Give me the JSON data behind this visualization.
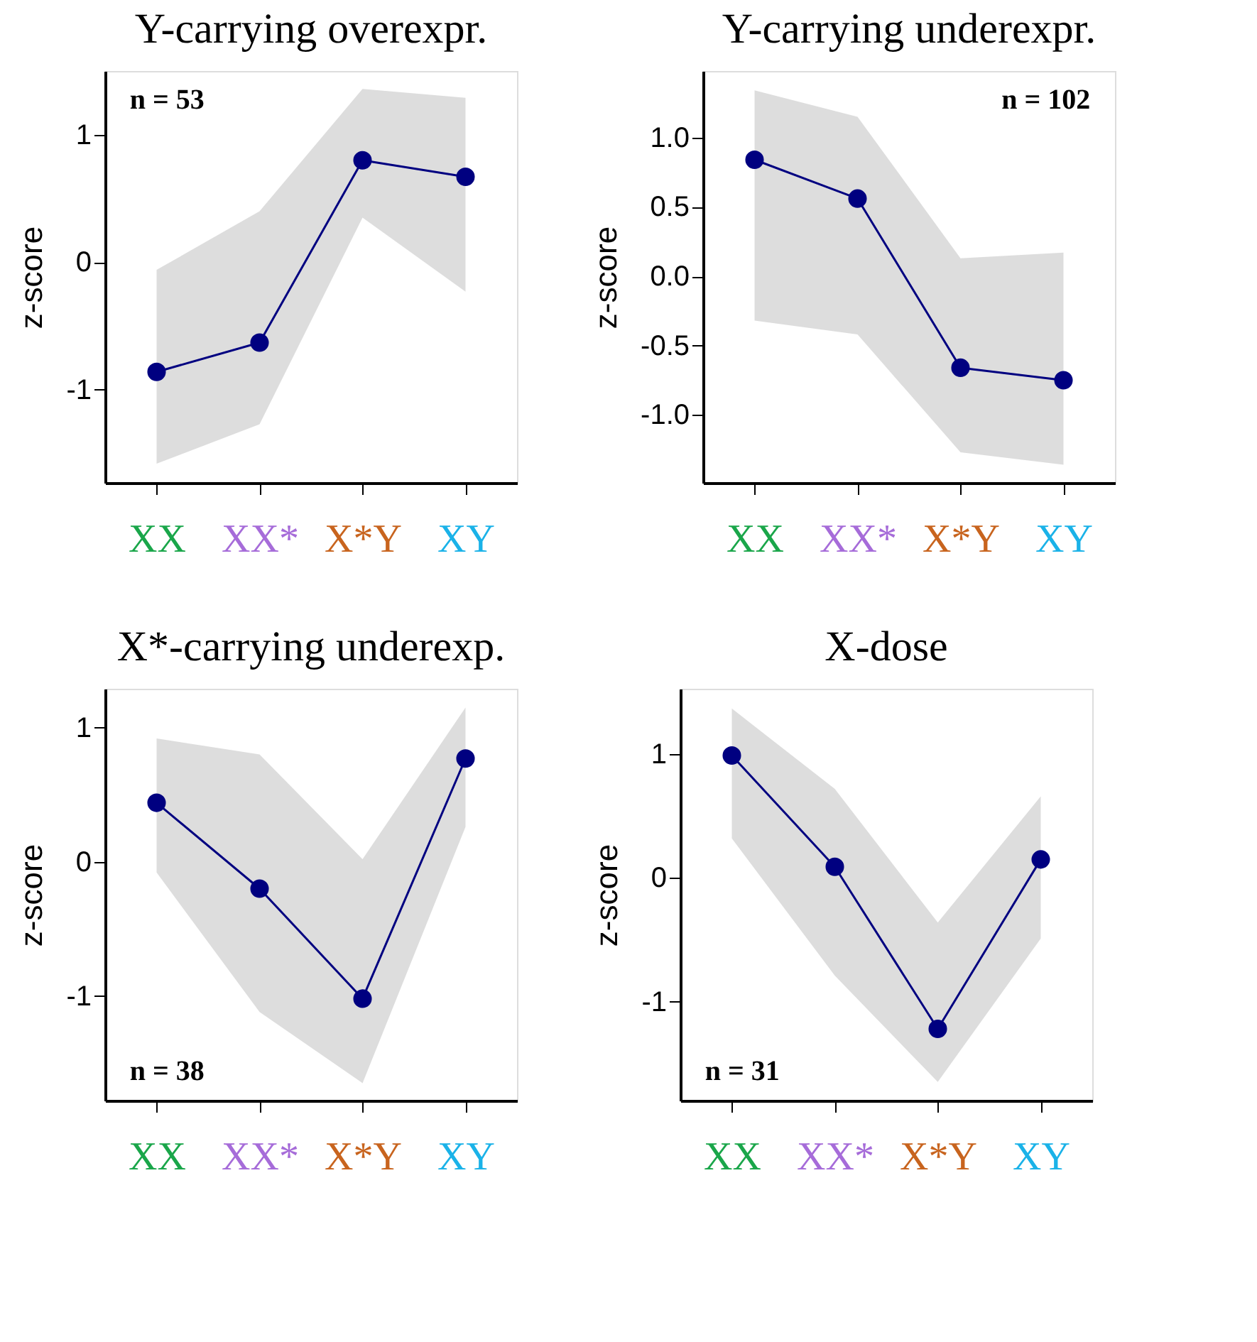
{
  "chart_data": [
    {
      "type": "line",
      "title": "Y-carrying overexpr.",
      "ylabel": "z-score",
      "categories": [
        "XX",
        "XX*",
        "X*Y",
        "XY"
      ],
      "ylim": [
        -1.73,
        1.5
      ],
      "yticks": [
        -1,
        0,
        1
      ],
      "grid": false,
      "marker": "circle",
      "line_style": "solid",
      "annotations": [
        "n = 53"
      ],
      "series": [
        {
          "color": "#000080",
          "values": [
            -0.86,
            -0.63,
            0.8,
            0.67
          ],
          "lower": [
            -1.58,
            -1.27,
            0.35,
            -0.23
          ],
          "upper": [
            -0.06,
            0.4,
            1.36,
            1.29
          ]
        }
      ]
    },
    {
      "type": "line",
      "title": "Y-carrying underexpr.",
      "ylabel": "z-score",
      "categories": [
        "XX",
        "XX*",
        "X*Y",
        "XY"
      ],
      "ylim": [
        -1.49,
        1.48
      ],
      "yticks": [
        {
          "value": -1,
          "label": "-1.0"
        },
        {
          "value": -0.5,
          "label": "-0.5"
        },
        {
          "value": 0,
          "label": "0.0"
        },
        {
          "value": 0.5,
          "label": "0.5"
        },
        {
          "value": 1,
          "label": "1.0"
        }
      ],
      "grid": false,
      "marker": "circle",
      "line_style": "solid",
      "annotations": [
        "n = 102"
      ],
      "series": [
        {
          "color": "#000080",
          "values": [
            0.84,
            0.56,
            -0.66,
            -0.75
          ],
          "lower": [
            -0.32,
            -0.42,
            -1.27,
            -1.36
          ],
          "upper": [
            1.34,
            1.15,
            0.13,
            0.17
          ]
        }
      ]
    },
    {
      "type": "line",
      "title": "X*-carrying underexp.",
      "ylabel": "z-score",
      "categories": [
        "XX",
        "XX*",
        "X*Y",
        "XY"
      ],
      "ylim": [
        -1.78,
        1.29
      ],
      "yticks": [
        -1,
        0,
        1
      ],
      "grid": false,
      "marker": "circle",
      "line_style": "solid",
      "annotations": [
        "n = 38"
      ],
      "series": [
        {
          "color": "#000080",
          "values": [
            0.44,
            -0.2,
            -1.02,
            0.77
          ],
          "lower": [
            -0.08,
            -1.12,
            -1.65,
            0.26
          ],
          "upper": [
            0.92,
            0.8,
            0.02,
            1.15
          ]
        }
      ]
    },
    {
      "type": "line",
      "title": "X-dose",
      "ylabel": "z-score",
      "categories": [
        "XX",
        "XX*",
        "X*Y",
        "XY"
      ],
      "ylim": [
        -1.8,
        1.53
      ],
      "yticks": [
        -1,
        0,
        1
      ],
      "grid": false,
      "marker": "circle",
      "line_style": "solid",
      "annotations": [
        "n = 31"
      ],
      "series": [
        {
          "color": "#000080",
          "values": [
            0.99,
            0.09,
            -1.22,
            0.15
          ],
          "lower": [
            0.32,
            -0.79,
            -1.65,
            -0.49
          ],
          "upper": [
            1.37,
            0.72,
            -0.36,
            0.66
          ]
        }
      ]
    }
  ]
}
